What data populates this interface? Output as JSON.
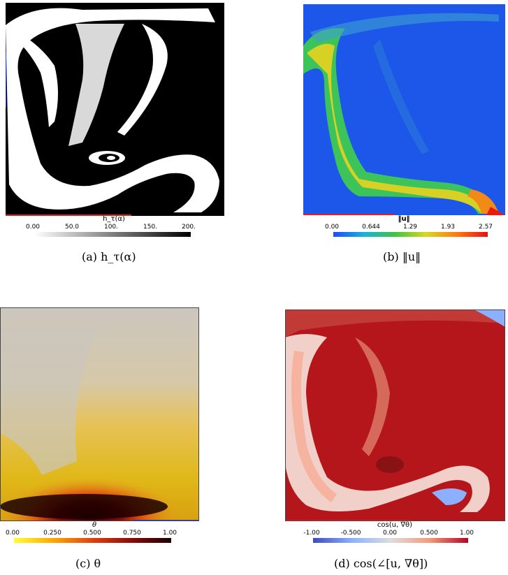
{
  "panels": [
    {
      "id": "a",
      "colorbar_title": "h_τ(α)",
      "ticks": [
        "0.00",
        "50.0",
        "100.",
        "150.",
        "200."
      ],
      "colormap": [
        "#ffffff",
        "#000000"
      ],
      "caption": "(a) h_τ(α)"
    },
    {
      "id": "b",
      "colorbar_title": "‖u‖",
      "ticks": [
        "0.00",
        "0.644",
        "1.29",
        "1.93",
        "2.57"
      ],
      "colormap": [
        "#1f4bff",
        "#19b3d9",
        "#3fc43f",
        "#d8d820",
        "#ff7a10",
        "#e81010"
      ],
      "caption": "(b) ‖u‖"
    },
    {
      "id": "c",
      "colorbar_title": "θ",
      "ticks": [
        "0.00",
        "0.250",
        "0.500",
        "0.750",
        "1.00"
      ],
      "colormap": [
        "#ffff30",
        "#ffa800",
        "#e04010",
        "#8a0a0a",
        "#1a0000"
      ],
      "caption": "(c) θ"
    },
    {
      "id": "d",
      "colorbar_title": "cos(u, ∇θ)",
      "ticks": [
        "-1.00",
        "-0.500",
        "0.00",
        "0.500",
        "1.00"
      ],
      "colormap": [
        "#3b4cc0",
        "#8db0fe",
        "#dddddd",
        "#f49a7b",
        "#b40426"
      ],
      "caption": "(d) cos(∠[u, ∇θ])"
    }
  ]
}
